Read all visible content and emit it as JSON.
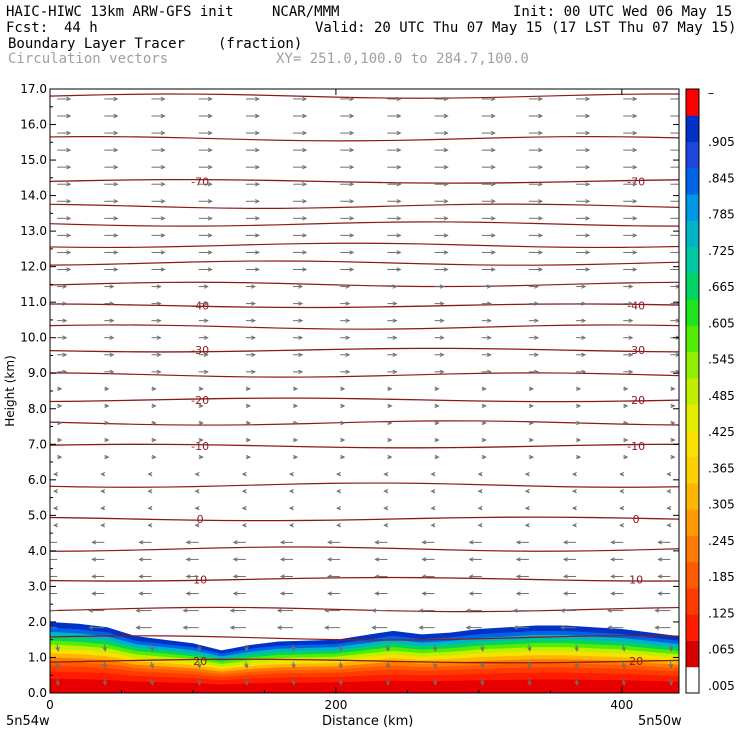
{
  "header": {
    "model": "HAIC-HIWC 13km ARW-GFS init",
    "org": "NCAR/MMM",
    "init": "Init: 00 UTC Wed 06 May 15",
    "fcst_label": "Fcst:",
    "fcst_value": "44 h",
    "valid": "Valid: 20 UTC Thu 07 May 15 (17 LST Thu 07 May 15)",
    "field": "Boundary Layer Tracer",
    "units": "(fraction)",
    "vectors": "Circulation vectors",
    "xy": "XY= 251.0,100.0 to 284.7,100.0"
  },
  "footer": {
    "left_end": "5n54w",
    "right_end": "5n50w"
  },
  "colors": {
    "contour": "#8b1a1a",
    "vector": "#6f6f6f",
    "scale": [
      "#ffffff",
      "#d70000",
      "#ff1c00",
      "#ff3c00",
      "#ff5a00",
      "#ff7a00",
      "#ff9a00",
      "#ffb600",
      "#ffd000",
      "#f8e000",
      "#e4ec00",
      "#c0f000",
      "#90f000",
      "#54ec00",
      "#1ee41e",
      "#00d464",
      "#00c8a0",
      "#00b4c8",
      "#0096e6",
      "#0064e6",
      "#1e46dc",
      "#0032c8",
      "#ff0000"
    ]
  },
  "chart_data": {
    "type": "contour",
    "xlabel": "Distance (km)",
    "ylabel": "Height (km)",
    "xlim": [
      0,
      440
    ],
    "ylim": [
      0,
      17
    ],
    "xticks": [
      "0",
      "200",
      "400"
    ],
    "yticks": [
      "0.0",
      "1.0",
      "2.0",
      "3.0",
      "4.0",
      "5.0",
      "6.0",
      "7.0",
      "8.0",
      "9.0",
      "10.0",
      "11.0",
      "12.0",
      "13.0",
      "14.0",
      "15.0",
      "16.0",
      "17.0"
    ],
    "colorbar_labels": [
      ".005",
      ".065",
      ".125",
      ".185",
      ".245",
      ".305",
      ".365",
      ".425",
      ".485",
      ".545",
      ".605",
      ".665",
      ".725",
      ".785",
      ".845",
      ".905",
      "–"
    ],
    "tracer_top_km": [
      [
        0,
        2.0
      ],
      [
        20,
        1.95
      ],
      [
        40,
        1.85
      ],
      [
        60,
        1.6
      ],
      [
        80,
        1.5
      ],
      [
        100,
        1.4
      ],
      [
        120,
        1.2
      ],
      [
        140,
        1.35
      ],
      [
        160,
        1.45
      ],
      [
        200,
        1.5
      ],
      [
        240,
        1.75
      ],
      [
        260,
        1.65
      ],
      [
        280,
        1.7
      ],
      [
        300,
        1.8
      ],
      [
        320,
        1.85
      ],
      [
        340,
        1.9
      ],
      [
        360,
        1.9
      ],
      [
        380,
        1.85
      ],
      [
        400,
        1.8
      ],
      [
        440,
        1.6
      ]
    ],
    "temperature_contours": [
      {
        "label": "-70",
        "y_km": 14.4
      },
      {
        "label": "-40",
        "y_km": 10.9
      },
      {
        "label": "-30",
        "y_km": 9.65
      },
      {
        "label": "-20",
        "y_km": 8.25
      },
      {
        "label": "-10",
        "y_km": 6.95
      },
      {
        "label": "0",
        "y_km": 4.9
      },
      {
        "label": "10",
        "y_km": 3.2
      },
      {
        "label": "20",
        "y_km": 0.9
      }
    ]
  }
}
